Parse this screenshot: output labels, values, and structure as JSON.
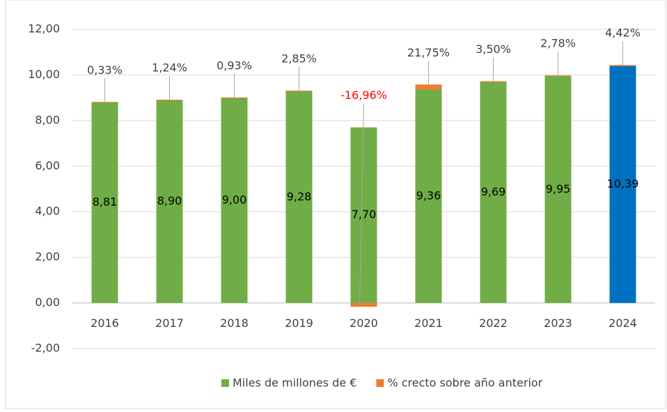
{
  "chart_data": {
    "type": "bar",
    "stacked": true,
    "categories": [
      "2016",
      "2017",
      "2018",
      "2019",
      "2020",
      "2021",
      "2022",
      "2023",
      "2024"
    ],
    "series": [
      {
        "name": "Miles de millones de €",
        "color": "#70ad47",
        "colors": [
          "#70ad47",
          "#70ad47",
          "#70ad47",
          "#70ad47",
          "#70ad47",
          "#70ad47",
          "#70ad47",
          "#70ad47",
          "#0070c0"
        ],
        "values": [
          8.81,
          8.9,
          9.0,
          9.28,
          7.7,
          9.36,
          9.69,
          9.95,
          10.39
        ],
        "value_labels": [
          "8,81",
          "8,90",
          "9,00",
          "9,28",
          "7,70",
          "9,36",
          "9,69",
          "9,95",
          "10,39"
        ]
      },
      {
        "name": "% crecto sobre año anterior",
        "color": "#ed7d31",
        "negative_label_color": "#ff0000",
        "values": [
          0.0033,
          0.0124,
          0.0093,
          0.0285,
          -0.1696,
          0.2175,
          0.035,
          0.0278,
          0.0442
        ],
        "value_labels": [
          "0,33%",
          "1,24%",
          "0,93%",
          "2,85%",
          "-16,96%",
          "21,75%",
          "3,50%",
          "2,78%",
          "4,42%"
        ]
      }
    ],
    "ylim": [
      -2,
      12
    ],
    "yticks": [
      {
        "value": -2,
        "label": "-2,00"
      },
      {
        "value": 0,
        "label": "0,00"
      },
      {
        "value": 2,
        "label": "2,00"
      },
      {
        "value": 4,
        "label": "4,00"
      },
      {
        "value": 6,
        "label": "6,00"
      },
      {
        "value": 8,
        "label": "8,00"
      },
      {
        "value": 10,
        "label": "10,00"
      },
      {
        "value": 12,
        "label": "12,00"
      }
    ],
    "grid": true,
    "legend": "bottom"
  }
}
